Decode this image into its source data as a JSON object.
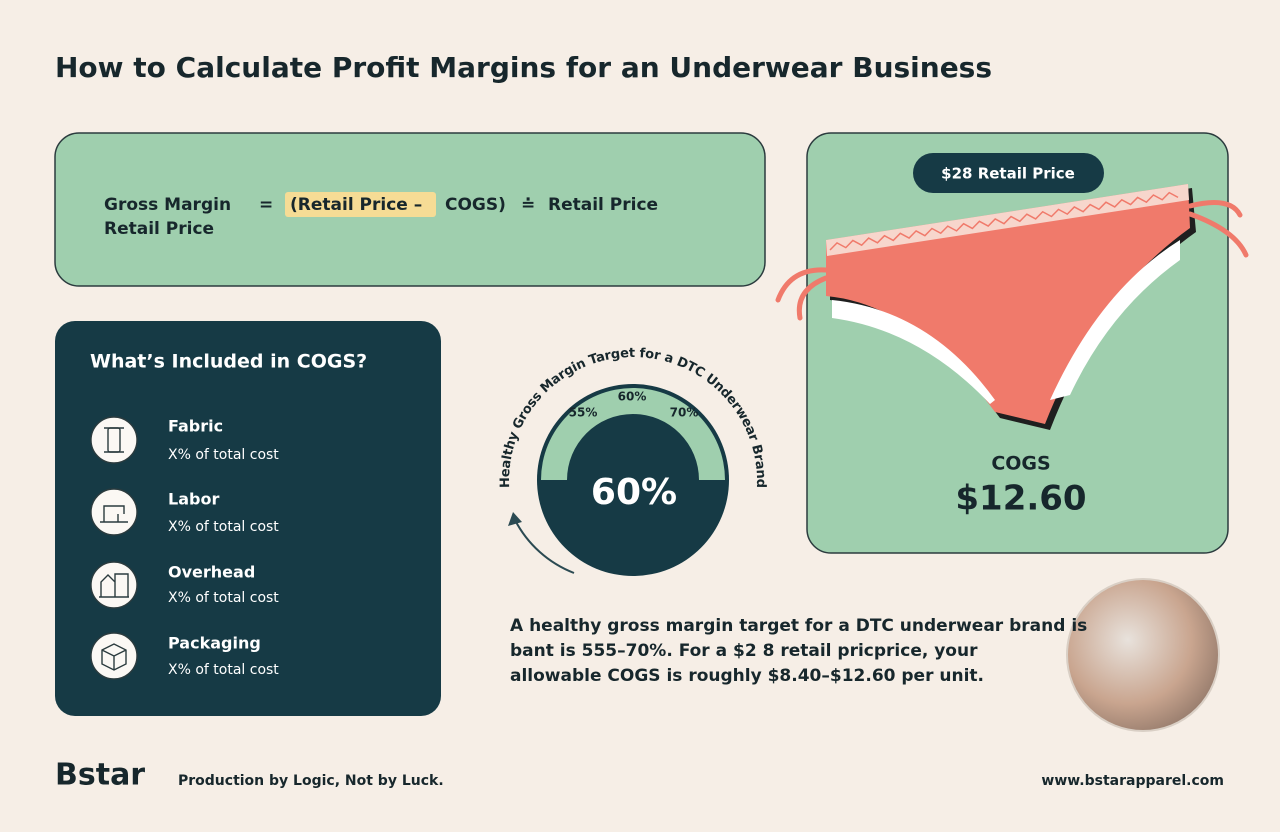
{
  "title": "How to Calculate Profit Margins for an Underwear Business",
  "formula": {
    "label": "Gross Margin",
    "equals": "=",
    "highlight": "(Retail Price –",
    "term": "COGS)",
    "operator": "≐",
    "divisor": "Retail Price",
    "second_line": "Retail Price"
  },
  "cogs_panel": {
    "title": "What’s Included in COGS?",
    "items": [
      {
        "name": "Fabric",
        "detail": "X% of total cost"
      },
      {
        "name": "Labor",
        "detail": "X% of total cost"
      },
      {
        "name": "Overhead",
        "detail": "X% of total cost"
      },
      {
        "name": "Packaging",
        "detail": "X% of total cost"
      }
    ]
  },
  "gauge": {
    "arc_text": "Healthy Gross Margin Target for a DTC Underwear Brand",
    "tick_labels": [
      "55%",
      "60%",
      "70%"
    ],
    "value_label": "60%"
  },
  "product": {
    "price_tag": "$28 Retail Price",
    "cogs_label": "COGS",
    "cogs_value": "$12.60"
  },
  "description": {
    "lines": [
      "A healthy gross margin target for a DTC underwear brand is",
      "bant is 555–70%. For a $2  8 retail pricprice, your",
      "allowable COGS is roughly $8.40–$12.60 per unit."
    ]
  },
  "footer": {
    "brand": "Bstar",
    "tagline": "Production by Logic, Not by Luck.",
    "url": "www.bstarapparel.com"
  }
}
